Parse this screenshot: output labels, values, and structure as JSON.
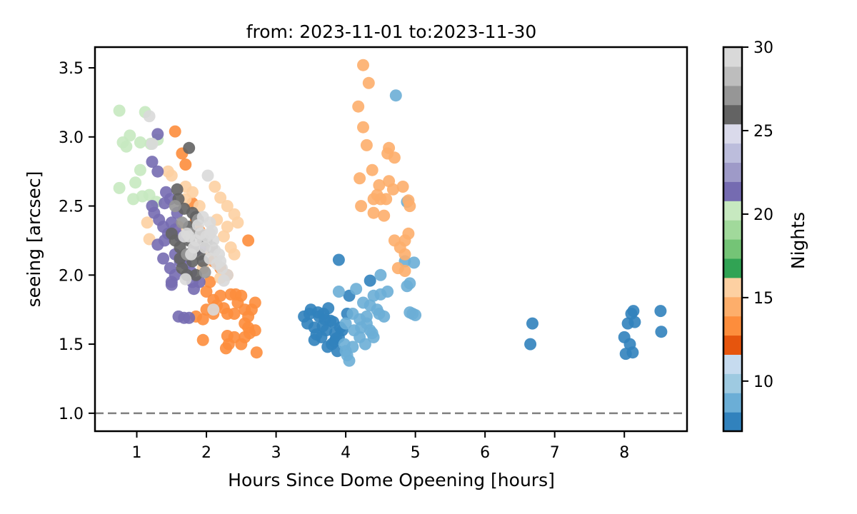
{
  "chart_data": {
    "type": "scatter",
    "title": "from: 2023-11-01 to:2023-11-30",
    "xlabel": "Hours Since Dome Opeening [hours]",
    "ylabel": "seeing [arcsec]",
    "xlim": [
      0.4,
      8.9
    ],
    "ylim": [
      0.87,
      3.65
    ],
    "xticks": [
      "1",
      "2",
      "3",
      "4",
      "5",
      "6",
      "7",
      "8"
    ],
    "yticks": [
      "1.0",
      "1.5",
      "2.0",
      "2.5",
      "3.0",
      "3.5"
    ],
    "reference_line": {
      "y": 1.0,
      "style": "dashed",
      "color": "#808080"
    },
    "grid": false,
    "colorbar": {
      "label": "Nights",
      "range": [
        7,
        30
      ],
      "ticks": [
        "10",
        "15",
        "20",
        "25",
        "30"
      ],
      "colormap": "tab20c",
      "colors": [
        "#3182bd",
        "#6baed6",
        "#9ecae1",
        "#c6dbef",
        "#e6550d",
        "#fd8d3c",
        "#fdae6b",
        "#fdd0a2",
        "#31a354",
        "#74c476",
        "#a1d99b",
        "#c7e9c0",
        "#756bb1",
        "#9e9ac8",
        "#bcbddc",
        "#dadaeb",
        "#636363",
        "#969696",
        "#bdbdbd",
        "#d9d9d9"
      ]
    },
    "series": [
      {
        "night": 7,
        "color": "#3182bd",
        "points": [
          [
            3.4,
            1.7
          ],
          [
            3.45,
            1.65
          ],
          [
            3.5,
            1.75
          ],
          [
            3.55,
            1.62
          ],
          [
            3.6,
            1.73
          ],
          [
            3.65,
            1.55
          ],
          [
            3.7,
            1.68
          ],
          [
            3.72,
            1.6
          ],
          [
            3.75,
            1.76
          ],
          [
            3.8,
            1.5
          ],
          [
            3.82,
            1.66
          ],
          [
            3.85,
            1.58
          ],
          [
            3.88,
            1.45
          ],
          [
            3.9,
            1.55
          ],
          [
            3.92,
            1.62
          ],
          [
            3.55,
            1.53
          ],
          [
            3.62,
            1.7
          ],
          [
            3.68,
            1.72
          ],
          [
            3.78,
            1.67
          ],
          [
            3.84,
            1.52
          ],
          [
            3.95,
            1.6
          ],
          [
            3.9,
            2.11
          ],
          [
            4.02,
            1.72
          ],
          [
            4.05,
            1.85
          ],
          [
            4.35,
            1.96
          ],
          [
            3.58,
            1.57
          ],
          [
            3.67,
            1.63
          ],
          [
            3.48,
            1.72
          ],
          [
            3.74,
            1.48
          ],
          [
            3.86,
            1.54
          ],
          [
            6.68,
            1.65
          ],
          [
            6.65,
            1.5
          ],
          [
            8.0,
            1.55
          ],
          [
            8.05,
            1.65
          ],
          [
            8.08,
            1.5
          ],
          [
            8.1,
            1.72
          ],
          [
            8.13,
            1.74
          ],
          [
            8.02,
            1.43
          ],
          [
            8.12,
            1.44
          ],
          [
            8.15,
            1.66
          ],
          [
            8.52,
            1.74
          ],
          [
            8.53,
            1.59
          ]
        ]
      },
      {
        "night": 8,
        "color": "#6baed6",
        "points": [
          [
            4.72,
            3.3
          ],
          [
            4.88,
            2.53
          ],
          [
            4.85,
            2.1
          ],
          [
            4.98,
            2.09
          ],
          [
            4.5,
            2.0
          ],
          [
            4.6,
            1.88
          ],
          [
            4.88,
            1.92
          ],
          [
            4.92,
            1.94
          ],
          [
            4.92,
            1.73
          ],
          [
            4.96,
            1.72
          ],
          [
            5.0,
            1.71
          ],
          [
            4.15,
            1.9
          ],
          [
            4.25,
            1.8
          ],
          [
            4.4,
            1.85
          ],
          [
            4.45,
            1.75
          ],
          [
            4.5,
            1.86
          ],
          [
            4.3,
            1.7
          ],
          [
            4.35,
            1.6
          ],
          [
            4.2,
            1.55
          ],
          [
            4.28,
            1.5
          ],
          [
            4.1,
            1.72
          ],
          [
            4.0,
            1.65
          ],
          [
            3.98,
            1.5
          ],
          [
            4.02,
            1.42
          ],
          [
            4.05,
            1.38
          ],
          [
            4.0,
            1.45
          ],
          [
            4.1,
            1.48
          ],
          [
            4.12,
            1.6
          ],
          [
            4.2,
            1.68
          ],
          [
            4.4,
            1.55
          ],
          [
            4.55,
            1.7
          ],
          [
            4.35,
            1.78
          ],
          [
            4.48,
            1.72
          ],
          [
            3.9,
            1.88
          ],
          [
            4.3,
            1.65
          ],
          [
            4.22,
            1.62
          ],
          [
            4.38,
            1.58
          ]
        ]
      },
      {
        "night": 13,
        "color": "#fd8d3c",
        "points": [
          [
            1.55,
            3.04
          ],
          [
            1.65,
            2.88
          ],
          [
            1.7,
            2.8
          ],
          [
            2.6,
            2.25
          ],
          [
            1.8,
            2.52
          ],
          [
            1.85,
            2.4
          ],
          [
            1.9,
            2.32
          ],
          [
            2.1,
            2.1
          ],
          [
            2.2,
            2.05
          ],
          [
            2.3,
            2.0
          ],
          [
            2.05,
            1.95
          ],
          [
            2.0,
            1.88
          ],
          [
            2.1,
            1.82
          ],
          [
            2.15,
            1.78
          ],
          [
            2.25,
            1.76
          ],
          [
            2.3,
            1.72
          ],
          [
            2.35,
            1.86
          ],
          [
            2.42,
            1.86
          ],
          [
            2.45,
            1.8
          ],
          [
            2.5,
            1.85
          ],
          [
            2.55,
            1.75
          ],
          [
            2.6,
            1.7
          ],
          [
            2.65,
            1.75
          ],
          [
            2.7,
            1.8
          ],
          [
            2.55,
            1.65
          ],
          [
            2.6,
            1.62
          ],
          [
            2.7,
            1.6
          ],
          [
            2.3,
            1.56
          ],
          [
            2.32,
            1.5
          ],
          [
            2.28,
            1.47
          ],
          [
            2.4,
            1.55
          ],
          [
            2.5,
            1.5
          ],
          [
            2.55,
            1.55
          ],
          [
            2.72,
            1.44
          ],
          [
            1.95,
            1.53
          ],
          [
            1.95,
            1.68
          ],
          [
            2.0,
            1.75
          ],
          [
            2.1,
            1.72
          ],
          [
            1.85,
            1.7
          ],
          [
            2.4,
            1.72
          ],
          [
            2.2,
            1.85
          ],
          [
            2.62,
            1.58
          ]
        ]
      },
      {
        "night": 14,
        "color": "#fdae6b",
        "points": [
          [
            4.25,
            3.52
          ],
          [
            4.33,
            3.39
          ],
          [
            4.18,
            3.22
          ],
          [
            4.25,
            3.07
          ],
          [
            4.3,
            2.94
          ],
          [
            4.62,
            2.92
          ],
          [
            4.7,
            2.85
          ],
          [
            4.6,
            2.88
          ],
          [
            4.38,
            2.76
          ],
          [
            4.2,
            2.7
          ],
          [
            4.48,
            2.65
          ],
          [
            4.5,
            2.55
          ],
          [
            4.58,
            2.55
          ],
          [
            4.45,
            2.58
          ],
          [
            4.4,
            2.55
          ],
          [
            4.62,
            2.68
          ],
          [
            4.68,
            2.62
          ],
          [
            4.82,
            2.64
          ],
          [
            4.22,
            2.5
          ],
          [
            4.4,
            2.45
          ],
          [
            4.55,
            2.43
          ],
          [
            4.9,
            2.54
          ],
          [
            4.92,
            2.5
          ],
          [
            4.9,
            2.3
          ],
          [
            4.85,
            2.25
          ],
          [
            4.78,
            2.2
          ],
          [
            4.85,
            2.15
          ],
          [
            4.75,
            2.05
          ],
          [
            4.85,
            2.03
          ],
          [
            4.7,
            2.25
          ]
        ]
      },
      {
        "night": 15,
        "color": "#fdd0a2",
        "points": [
          [
            1.5,
            2.72
          ],
          [
            1.45,
            2.75
          ],
          [
            1.7,
            2.64
          ],
          [
            1.8,
            2.6
          ],
          [
            2.12,
            2.64
          ],
          [
            2.2,
            2.56
          ],
          [
            2.3,
            2.5
          ],
          [
            2.4,
            2.44
          ],
          [
            2.45,
            2.38
          ],
          [
            2.35,
            2.2
          ],
          [
            2.4,
            2.15
          ],
          [
            2.3,
            2.35
          ],
          [
            2.25,
            2.28
          ],
          [
            2.05,
            2.18
          ],
          [
            1.15,
            2.38
          ],
          [
            1.18,
            2.26
          ],
          [
            1.7,
            2.55
          ],
          [
            1.9,
            2.5
          ],
          [
            2.15,
            2.4
          ],
          [
            1.6,
            2.35
          ],
          [
            2.2,
            1.98
          ],
          [
            1.95,
            2.05
          ]
        ]
      },
      {
        "night": 18,
        "color": "#c7e9c0",
        "points": [
          [
            0.75,
            3.19
          ],
          [
            0.9,
            3.01
          ],
          [
            0.8,
            2.96
          ],
          [
            0.85,
            2.93
          ],
          [
            0.75,
            2.63
          ],
          [
            1.05,
            2.76
          ],
          [
            0.98,
            2.67
          ],
          [
            0.95,
            2.55
          ],
          [
            1.08,
            2.57
          ],
          [
            1.18,
            2.58
          ],
          [
            1.12,
            3.18
          ],
          [
            1.2,
            2.95
          ],
          [
            1.05,
            2.96
          ],
          [
            1.3,
            2.98
          ],
          [
            1.28,
            2.53
          ]
        ]
      },
      {
        "night": 21,
        "color": "#756bb1",
        "points": [
          [
            1.3,
            3.02
          ],
          [
            1.22,
            2.82
          ],
          [
            1.3,
            2.75
          ],
          [
            1.42,
            2.6
          ],
          [
            1.48,
            2.55
          ],
          [
            1.22,
            2.5
          ],
          [
            1.25,
            2.45
          ],
          [
            1.32,
            2.4
          ],
          [
            1.38,
            2.35
          ],
          [
            1.5,
            2.38
          ],
          [
            1.45,
            2.3
          ],
          [
            1.55,
            2.33
          ],
          [
            1.62,
            2.28
          ],
          [
            1.3,
            2.22
          ],
          [
            1.4,
            2.25
          ],
          [
            1.55,
            2.15
          ],
          [
            1.62,
            2.1
          ],
          [
            1.7,
            2.08
          ],
          [
            1.55,
            2.0
          ],
          [
            1.5,
            1.95
          ],
          [
            1.48,
            2.05
          ],
          [
            1.38,
            2.12
          ],
          [
            1.5,
            1.93
          ],
          [
            1.6,
            1.7
          ],
          [
            1.68,
            1.69
          ],
          [
            1.75,
            1.69
          ],
          [
            1.82,
            1.9
          ],
          [
            1.8,
            1.95
          ],
          [
            1.9,
            1.95
          ],
          [
            1.78,
            2.02
          ],
          [
            1.4,
            2.52
          ],
          [
            1.58,
            2.45
          ],
          [
            1.85,
            2.18
          ],
          [
            1.92,
            2.2
          ]
        ]
      },
      {
        "night": 26,
        "color": "#636363",
        "points": [
          [
            1.75,
            2.92
          ],
          [
            1.58,
            2.62
          ],
          [
            1.6,
            2.55
          ],
          [
            1.68,
            2.48
          ],
          [
            1.8,
            2.45
          ],
          [
            1.85,
            2.42
          ],
          [
            1.75,
            2.35
          ],
          [
            1.5,
            2.3
          ],
          [
            1.55,
            2.25
          ],
          [
            1.62,
            2.2
          ],
          [
            1.7,
            2.15
          ],
          [
            1.8,
            2.1
          ],
          [
            1.65,
            2.05
          ],
          [
            1.72,
            2.0
          ],
          [
            1.85,
            2.0
          ],
          [
            1.95,
            2.1
          ],
          [
            2.0,
            2.25
          ],
          [
            1.9,
            2.3
          ],
          [
            1.62,
            2.12
          ],
          [
            1.75,
            2.25
          ],
          [
            1.9,
            2.15
          ]
        ]
      },
      {
        "night": 27,
        "color": "#969696",
        "points": [
          [
            1.55,
            2.5
          ],
          [
            1.65,
            2.38
          ],
          [
            1.78,
            2.3
          ],
          [
            1.88,
            2.4
          ],
          [
            1.95,
            2.25
          ],
          [
            1.72,
            2.15
          ],
          [
            1.82,
            2.2
          ],
          [
            2.08,
            2.2
          ],
          [
            1.98,
            2.02
          ]
        ]
      },
      {
        "night": 29,
        "color": "#d9d9d9",
        "points": [
          [
            1.18,
            3.15
          ],
          [
            1.22,
            2.95
          ],
          [
            2.02,
            2.72
          ],
          [
            1.95,
            2.42
          ],
          [
            2.05,
            2.38
          ],
          [
            1.88,
            2.36
          ],
          [
            1.92,
            2.3
          ],
          [
            2.0,
            2.28
          ],
          [
            2.08,
            2.32
          ],
          [
            2.1,
            2.25
          ],
          [
            1.98,
            2.2
          ],
          [
            2.12,
            2.18
          ],
          [
            2.18,
            2.15
          ],
          [
            2.05,
            2.12
          ],
          [
            2.15,
            2.08
          ],
          [
            2.22,
            2.05
          ],
          [
            2.2,
            2.1
          ],
          [
            1.82,
            2.2
          ],
          [
            1.85,
            2.25
          ],
          [
            1.75,
            2.28
          ],
          [
            1.68,
            2.28
          ],
          [
            1.72,
            2.3
          ],
          [
            1.78,
            2.15
          ],
          [
            1.7,
            1.97
          ],
          [
            2.1,
            1.75
          ],
          [
            2.25,
            1.96
          ],
          [
            2.3,
            2.0
          ],
          [
            2.05,
            2.3
          ]
        ]
      }
    ]
  }
}
